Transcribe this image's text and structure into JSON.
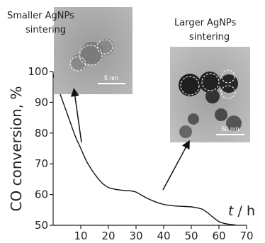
{
  "chart_data": {
    "type": "line",
    "ylabel": "CO conversion, %",
    "xlabel_var": "t",
    "xlabel_unit": "h",
    "xlim": [
      0,
      70
    ],
    "ylim": [
      50,
      100
    ],
    "x_ticks": [
      "10",
      "20",
      "30",
      "40",
      "50",
      "60",
      "70"
    ],
    "y_ticks": [
      "50",
      "60",
      "70",
      "80",
      "90",
      "100"
    ],
    "series": [
      {
        "x": [
          0,
          2,
          4,
          6,
          8,
          10,
          12,
          14,
          16,
          18,
          20,
          22,
          24,
          26,
          28,
          30,
          32,
          34,
          36,
          38,
          40,
          42,
          44,
          46,
          48,
          50,
          52,
          54,
          56,
          58,
          60,
          62,
          64,
          66
        ],
        "values": [
          99,
          94,
          89,
          84,
          79,
          75,
          71,
          68,
          65.5,
          63.5,
          62.3,
          61.8,
          61.5,
          61.3,
          61.2,
          60.8,
          59.8,
          58.8,
          58,
          57.3,
          56.8,
          56.5,
          56.3,
          56.2,
          56.1,
          56,
          55.7,
          55.2,
          54,
          52.5,
          51.2,
          50.6,
          50.3,
          50.1
        ]
      }
    ],
    "annotations": [
      {
        "line1": "Smaller AgNPs",
        "line2": "sintering",
        "scale": "5 nm"
      },
      {
        "line1": "Larger AgNPs",
        "line2": "sintering",
        "scale": "50 nm"
      }
    ]
  }
}
